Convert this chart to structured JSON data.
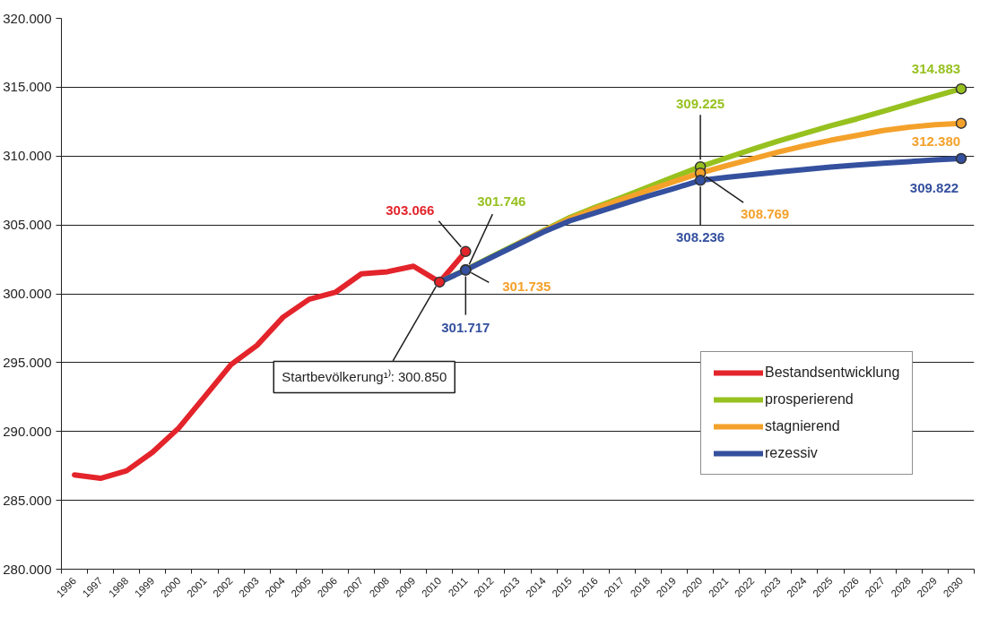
{
  "chart_data": {
    "type": "line",
    "categories": [
      "1996",
      "1997",
      "1998",
      "1999",
      "2000",
      "2001",
      "2002",
      "2003",
      "2004",
      "2005",
      "2006",
      "2007",
      "2008",
      "2009",
      "2010",
      "2011",
      "2012",
      "2013",
      "2014",
      "2015",
      "2016",
      "2017",
      "2018",
      "2019",
      "2020",
      "2021",
      "2022",
      "2023",
      "2024",
      "2025",
      "2026",
      "2027",
      "2028",
      "2029",
      "2030"
    ],
    "series": [
      {
        "name": "Bestandsentwicklung",
        "color": "#e3242b",
        "values": [
          286850,
          286600,
          287150,
          288500,
          290250,
          292550,
          294850,
          296250,
          298300,
          299600,
          300100,
          301450,
          301600,
          302000,
          300850,
          303066,
          null,
          null,
          null,
          null,
          null,
          null,
          null,
          null,
          null,
          null,
          null,
          null,
          null,
          null,
          null,
          null,
          null,
          null,
          null
        ],
        "value_labels": [
          null,
          null,
          null,
          null,
          null,
          null,
          null,
          null,
          null,
          null,
          null,
          null,
          null,
          null,
          null,
          "303.066",
          null,
          null,
          null,
          null,
          null,
          null,
          null,
          null,
          null,
          null,
          null,
          null,
          null,
          null,
          null,
          null,
          null,
          null,
          null
        ]
      },
      {
        "name": "prosperierend",
        "color": "#97c11f",
        "values": [
          null,
          null,
          null,
          null,
          null,
          null,
          null,
          null,
          null,
          null,
          null,
          null,
          null,
          null,
          300850,
          301746,
          302700,
          303650,
          304600,
          305550,
          306300,
          307000,
          307750,
          308500,
          309225,
          309870,
          310500,
          311100,
          311650,
          312200,
          312700,
          313250,
          313800,
          314350,
          314883
        ],
        "value_labels": [
          null,
          null,
          null,
          null,
          null,
          null,
          null,
          null,
          null,
          null,
          null,
          null,
          null,
          null,
          null,
          "301.746",
          null,
          null,
          null,
          null,
          null,
          null,
          null,
          null,
          "309.225",
          null,
          null,
          null,
          null,
          null,
          null,
          null,
          null,
          null,
          "314.883"
        ]
      },
      {
        "name": "stagnierend",
        "color": "#f4a12b",
        "values": [
          null,
          null,
          null,
          null,
          null,
          null,
          null,
          null,
          null,
          null,
          null,
          null,
          null,
          null,
          null,
          301735,
          null,
          303620,
          304550,
          305450,
          306200,
          306850,
          307500,
          308150,
          308769,
          309300,
          309800,
          310300,
          310750,
          311150,
          311500,
          311850,
          312100,
          312270,
          312380
        ],
        "value_labels": [
          null,
          null,
          null,
          null,
          null,
          null,
          null,
          null,
          null,
          null,
          null,
          null,
          null,
          null,
          null,
          "301.735",
          null,
          null,
          null,
          null,
          null,
          null,
          null,
          null,
          "308.769",
          null,
          null,
          null,
          null,
          null,
          null,
          null,
          null,
          null,
          "312.380"
        ]
      },
      {
        "name": "rezessiv",
        "color": "#34509e",
        "values": [
          null,
          null,
          null,
          null,
          null,
          null,
          null,
          null,
          null,
          null,
          null,
          null,
          null,
          null,
          300850,
          301717,
          302650,
          303580,
          304500,
          305300,
          305900,
          306500,
          307100,
          307650,
          308236,
          308450,
          308650,
          308850,
          309020,
          309200,
          309350,
          309480,
          309600,
          309720,
          309822
        ],
        "value_labels": [
          null,
          null,
          null,
          null,
          null,
          null,
          null,
          null,
          null,
          null,
          null,
          null,
          null,
          null,
          null,
          "301.717",
          null,
          null,
          null,
          null,
          null,
          null,
          null,
          null,
          "308.236",
          null,
          null,
          null,
          null,
          null,
          null,
          null,
          null,
          null,
          "309.822"
        ]
      }
    ],
    "ylim": [
      280000,
      320000
    ],
    "yticks": [
      {
        "value": 280000,
        "label": "280.000"
      },
      {
        "value": 285000,
        "label": "285.000"
      },
      {
        "value": 290000,
        "label": "290.000"
      },
      {
        "value": 295000,
        "label": "295.000"
      },
      {
        "value": 300000,
        "label": "300.000"
      },
      {
        "value": 305000,
        "label": "305.000"
      },
      {
        "value": 310000,
        "label": "310.000"
      },
      {
        "value": 315000,
        "label": "315.000"
      },
      {
        "value": 320000,
        "label": "320.000"
      }
    ],
    "grid": "y",
    "legend": "bottom right",
    "line_style": "solid",
    "annotations": [
      {
        "text": "Startbevölkerung¹⁾: 300.850",
        "x": "2010",
        "y": 300850
      }
    ]
  }
}
